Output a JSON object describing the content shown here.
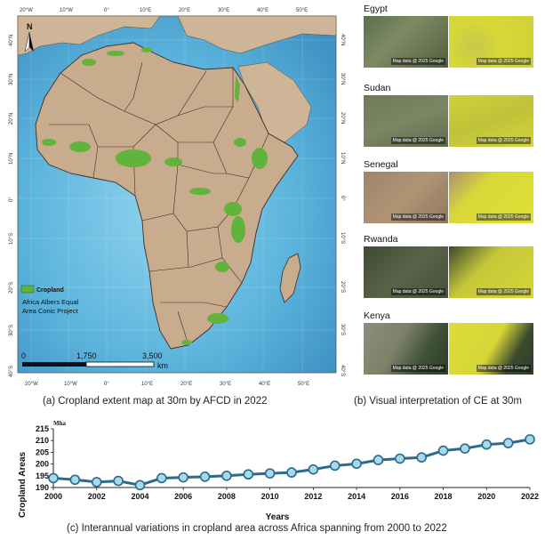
{
  "map": {
    "top_lon_labels": [
      "20°W",
      "10°W",
      "0°",
      "10°E",
      "20°E",
      "30°E",
      "40°E",
      "50°E"
    ],
    "bottom_lon_labels": [
      "20°W",
      "10°W",
      "0°",
      "10°E",
      "20°E",
      "30°E",
      "40°E",
      "50°E"
    ],
    "left_lat_labels": [
      "40°N",
      "30°N",
      "20°N",
      "10°N",
      "0°",
      "10°S",
      "20°S",
      "30°S",
      "40°S"
    ],
    "right_lat_labels": [
      "40°N",
      "30°N",
      "20°N",
      "10°N",
      "0°",
      "10°S",
      "20°S",
      "30°S",
      "40°S"
    ],
    "north_arrow_label": "N",
    "legend_label": "Cropland",
    "projection_line1": "Africa Albers Equal",
    "projection_line2": "Area Conic Project",
    "scale_labels": [
      "0",
      "1,750",
      "3,500"
    ],
    "scale_unit": "km",
    "colors": {
      "ocean": "#5fb6dc",
      "land": "#c9ab8d",
      "cropland": "#62b33c"
    }
  },
  "map_caption": "(a) Cropland extent map at 30m by AFCD in 2022",
  "gallery": {
    "attribution": "Map data @ 2025 Google",
    "rows": [
      {
        "label": "Egypt"
      },
      {
        "label": "Sudan"
      },
      {
        "label": "Senegal"
      },
      {
        "label": "Rwanda"
      },
      {
        "label": "Kenya"
      }
    ]
  },
  "gallery_caption": "(b) Visual interpretation of CE at 30m",
  "chart_caption": "(c) Interannual variations in cropland area across Africa spanning from 2000 to 2022",
  "chart_data": {
    "type": "line",
    "x": [
      2000,
      2001,
      2002,
      2003,
      2004,
      2005,
      2006,
      2007,
      2008,
      2009,
      2010,
      2011,
      2012,
      2013,
      2014,
      2015,
      2016,
      2017,
      2018,
      2019,
      2020,
      2021,
      2022
    ],
    "values": [
      194.0,
      193.3,
      192.3,
      192.8,
      191.0,
      194.0,
      194.3,
      194.6,
      195.0,
      195.6,
      196.0,
      196.4,
      197.7,
      199.3,
      200.1,
      201.7,
      202.3,
      202.8,
      205.7,
      206.6,
      208.3,
      208.9,
      210.5
    ],
    "ylabel": "Cropland Areas",
    "xlabel": "Years",
    "unit_label": "Mha",
    "x_ticks": [
      2000,
      2002,
      2004,
      2006,
      2008,
      2010,
      2012,
      2014,
      2016,
      2018,
      2020,
      2022
    ],
    "y_ticks": [
      190,
      195,
      200,
      205,
      210,
      215
    ],
    "ylim": [
      190,
      215
    ],
    "xlim": [
      2000,
      2022
    ],
    "line_color": "#2b6a89",
    "marker_color": "#a8d8ec"
  }
}
